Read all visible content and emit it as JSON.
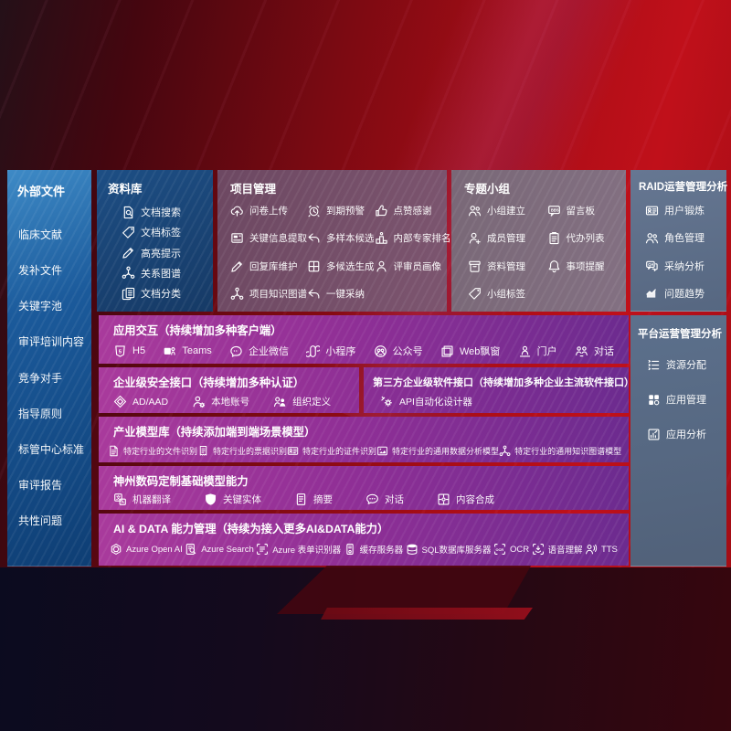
{
  "colors": {
    "background_red": "#b00d16",
    "panel_blue": "#1b5a9b",
    "panel_navy": "#1c4a7e",
    "panel_mauve": "#7a5470",
    "panel_gray_mauve": "#7e6c7c",
    "panel_gray_blue": "#5a6c88",
    "band_purple_left": "#a93a9c",
    "band_purple_right": "#6c2b8f",
    "text": "#ffffff"
  },
  "sections": {
    "external": {
      "title": "外部文件",
      "items": [
        {
          "label": "临床文献"
        },
        {
          "label": "发补文件"
        },
        {
          "label": "关键字池"
        },
        {
          "label": "审评培训内容"
        },
        {
          "label": "竞争对手"
        },
        {
          "label": "指导原则"
        },
        {
          "label": "标管中心标准"
        },
        {
          "label": "审评报告"
        },
        {
          "label": "共性问题"
        }
      ]
    },
    "repository": {
      "title": "资料库",
      "items": [
        {
          "icon": "doc-search",
          "label": "文档搜索"
        },
        {
          "icon": "tag",
          "label": "文档标签"
        },
        {
          "icon": "pencil",
          "label": "高亮提示"
        },
        {
          "icon": "graph",
          "label": "关系图谱"
        },
        {
          "icon": "doc-copy",
          "label": "文档分类"
        }
      ]
    },
    "project": {
      "title": "项目管理",
      "items": [
        {
          "icon": "cloud-upload",
          "label": "问卷上传"
        },
        {
          "icon": "alarm",
          "label": "到期预警"
        },
        {
          "icon": "thumbs-up",
          "label": "点赞感谢"
        },
        {
          "icon": "card-extract",
          "label": "关键信息提取"
        },
        {
          "icon": "reply",
          "label": "多样本候选"
        },
        {
          "icon": "podium",
          "label": "内部专家排名"
        },
        {
          "icon": "pencil",
          "label": "回复库维护"
        },
        {
          "icon": "grid-window",
          "label": "多候选生成"
        },
        {
          "icon": "person",
          "label": "评审员画像"
        },
        {
          "icon": "graph",
          "label": "项目知识图谱"
        },
        {
          "icon": "reply",
          "label": "一键采纳"
        }
      ]
    },
    "topic": {
      "title": "专题小组",
      "items": [
        {
          "icon": "people",
          "label": "小组建立"
        },
        {
          "icon": "bbs",
          "label": "留言板"
        },
        {
          "icon": "person-add",
          "label": "成员管理"
        },
        {
          "icon": "clipboard",
          "label": "代办列表"
        },
        {
          "icon": "archive",
          "label": "资料管理"
        },
        {
          "icon": "bell",
          "label": "事项提醒"
        },
        {
          "icon": "tag",
          "label": "小组标签"
        }
      ]
    },
    "raid": {
      "title": "RAID运营管理分析",
      "items": [
        {
          "icon": "id-card",
          "label": "用户锻炼"
        },
        {
          "icon": "people",
          "label": "角色管理"
        },
        {
          "icon": "qa-chat",
          "label": "采纳分析"
        },
        {
          "icon": "trend",
          "label": "问题趋势"
        }
      ]
    },
    "platform": {
      "title": "平台运营管理分析",
      "items": [
        {
          "icon": "list-marks",
          "label": "资源分配"
        },
        {
          "icon": "apps",
          "label": "应用管理"
        },
        {
          "icon": "app-chart",
          "label": "应用分析"
        }
      ]
    },
    "app_interaction": {
      "title": "应用交互（持续增加多种客户端）",
      "items": [
        {
          "icon": "html5",
          "label": "H5"
        },
        {
          "icon": "teams",
          "label": "Teams"
        },
        {
          "icon": "wechat-work",
          "label": "企业微信"
        },
        {
          "icon": "miniprogram",
          "label": "小程序"
        },
        {
          "icon": "official-account",
          "label": "公众号"
        },
        {
          "icon": "web-window",
          "label": "Web飘窗"
        },
        {
          "icon": "portal",
          "label": "门户"
        },
        {
          "icon": "dialog",
          "label": "对话"
        }
      ]
    },
    "security": {
      "title": "企业级安全接口（持续增加多种认证）",
      "items": [
        {
          "icon": "diamond",
          "label": "AD/AAD"
        },
        {
          "icon": "person-gear",
          "label": "本地账号"
        },
        {
          "icon": "org-people",
          "label": "组织定义"
        }
      ]
    },
    "third_party": {
      "title": "第三方企业级软件接口（持续增加多种企业主流软件接口）",
      "items": [
        {
          "icon": "api-gear",
          "label": "API自动化设计器"
        }
      ]
    },
    "industry_models": {
      "title": "产业模型库（持续添加端到端场景模型）",
      "items": [
        {
          "icon": "doc-file",
          "label": "特定行业的文件识别"
        },
        {
          "icon": "receipt",
          "label": "特定行业的票据识别"
        },
        {
          "icon": "id-card",
          "label": "特定行业的证件识别"
        },
        {
          "icon": "image-model",
          "label": "特定行业的通用数据分析模型"
        },
        {
          "icon": "graph",
          "label": "特定行业的通用知识图谱模型"
        }
      ]
    },
    "base_models": {
      "title": "神州数码定制基础模型能力",
      "items": [
        {
          "icon": "translate",
          "label": "机器翻译"
        },
        {
          "icon": "a-shield",
          "label": "关键实体"
        },
        {
          "icon": "doc-sum",
          "label": "摘要"
        },
        {
          "icon": "chat-dots",
          "label": "对话"
        },
        {
          "icon": "puzzle",
          "label": "内容合成"
        }
      ]
    },
    "ai_data": {
      "title": "AI & DATA 能力管理（持续为接入更多AI&DATA能力）",
      "items": [
        {
          "icon": "openai",
          "label": "Azure Open AI"
        },
        {
          "icon": "azure-search",
          "label": "Azure Search"
        },
        {
          "icon": "form-recognizer",
          "label": "Azure 表单识别器"
        },
        {
          "icon": "cache-server",
          "label": "缓存服务器"
        },
        {
          "icon": "sql-db",
          "label": "SQL数据库服务器"
        },
        {
          "icon": "ocr",
          "label": "OCR"
        },
        {
          "icon": "speech",
          "label": "语音理解"
        },
        {
          "icon": "tts",
          "label": "TTS"
        }
      ]
    }
  }
}
